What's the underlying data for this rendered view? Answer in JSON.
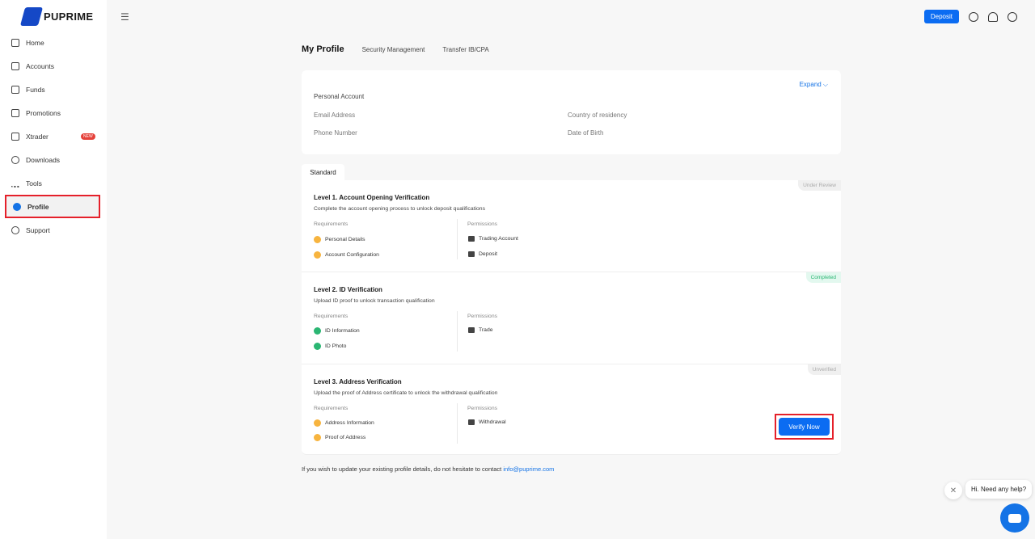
{
  "brand": {
    "name": "PUPRIME"
  },
  "sidebar": {
    "items": [
      {
        "label": "Home",
        "icon": "home-icon"
      },
      {
        "label": "Accounts",
        "icon": "accounts-icon"
      },
      {
        "label": "Funds",
        "icon": "wallet-icon"
      },
      {
        "label": "Promotions",
        "icon": "gift-icon"
      },
      {
        "label": "Xtrader",
        "icon": "xtrader-icon",
        "badge": "NEW"
      },
      {
        "label": "Downloads",
        "icon": "download-icon"
      },
      {
        "label": "Tools",
        "icon": "tools-icon"
      },
      {
        "label": "Profile",
        "icon": "profile-icon",
        "active": true
      },
      {
        "label": "Support",
        "icon": "headset-icon"
      }
    ]
  },
  "header": {
    "deposit_label": "Deposit"
  },
  "tabs": [
    "My Profile",
    "Security Management",
    "Transfer IB/CPA"
  ],
  "personal": {
    "expand": "Expand ⌵",
    "title": "Personal Account",
    "email": "Email Address",
    "country": "Country of residency",
    "phone": "Phone Number",
    "dob": "Date of Birth"
  },
  "standard_tab": "Standard",
  "levels": [
    {
      "title": "Level 1. Account Opening Verification",
      "desc": "Complete the account opening process to unlock deposit qualifications",
      "status": "Under Review",
      "req_label": "Requirements",
      "perm_label": "Permissions",
      "reqs": [
        "Personal Details",
        "Account Configuration"
      ],
      "perms": [
        "Trading Account",
        "Deposit"
      ]
    },
    {
      "title": "Level 2. ID Verification",
      "desc": "Upload ID proof to unlock transaction qualification",
      "status": "Completed",
      "req_label": "Requirements",
      "perm_label": "Permissions",
      "reqs": [
        "ID Information",
        "ID Photo"
      ],
      "perms": [
        "Trade"
      ]
    },
    {
      "title": "Level 3. Address Verification",
      "desc": "Upload the proof of Address certificate to unlock the withdrawal qualification",
      "status": "Unverified",
      "req_label": "Requirements",
      "perm_label": "Permissions",
      "reqs": [
        "Address Information",
        "Proof of Address"
      ],
      "perms": [
        "Withdrawal"
      ],
      "button": "Verify Now"
    }
  ],
  "footer": {
    "text": "If you wish to update your existing profile details, do not hesitate to contact ",
    "email": "info@puprime.com"
  },
  "chat": {
    "message": "Hi. Need any help?",
    "close": "✕"
  }
}
